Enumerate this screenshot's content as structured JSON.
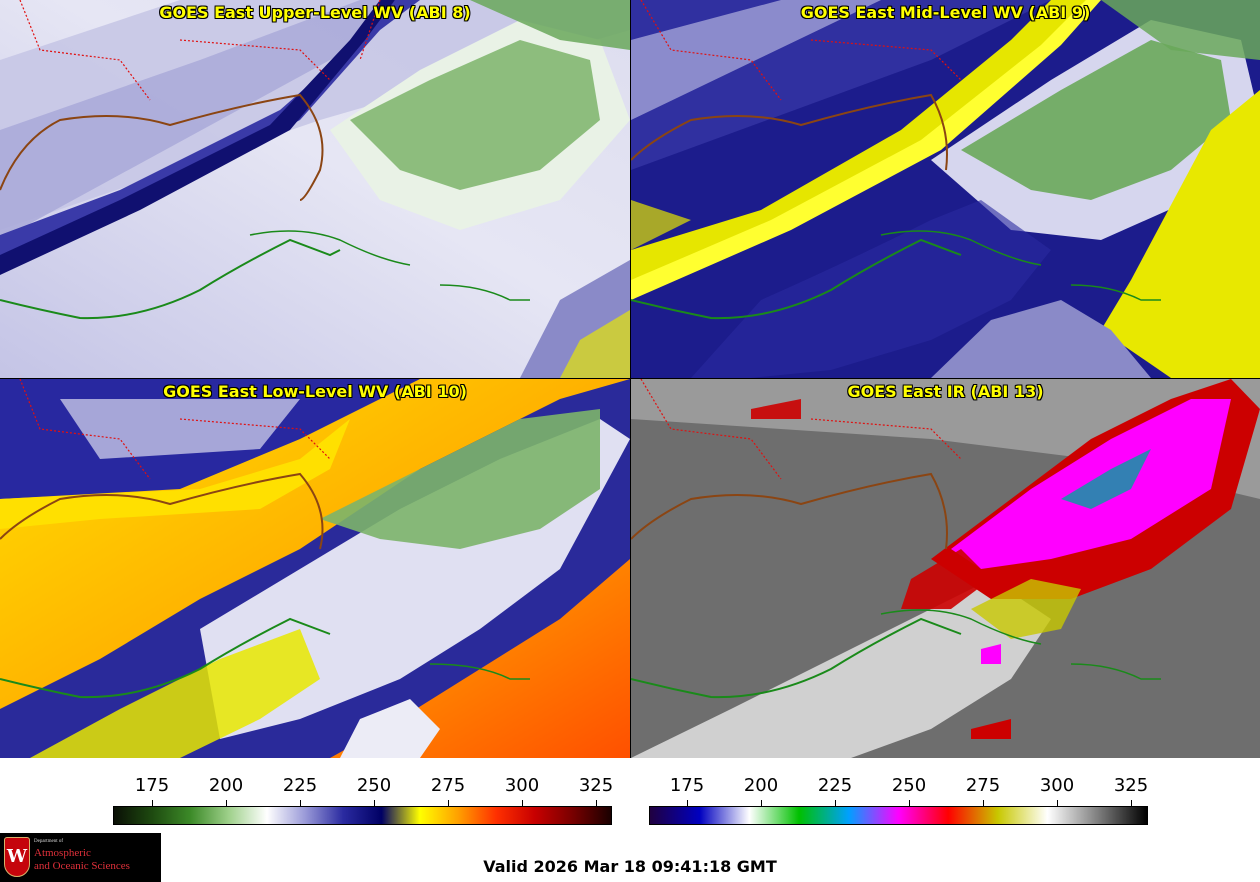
{
  "panels": [
    {
      "id": "p1",
      "title": "GOES East Upper-Level WV (ABI 8)"
    },
    {
      "id": "p2",
      "title": "GOES East Mid-Level WV (ABI 9)"
    },
    {
      "id": "p3",
      "title": "GOES East Low-Level WV (ABI 10)"
    },
    {
      "id": "p4",
      "title": "GOES East IR (ABI 13)"
    }
  ],
  "colorbar_wv": {
    "ticks": [
      "175",
      "200",
      "225",
      "250",
      "275",
      "300",
      "325"
    ],
    "colors": [
      "#0a0f05",
      "#1e4a10",
      "#3c8a28",
      "#9ed08a",
      "#ffffff",
      "#9a9ad8",
      "#2a2aa0",
      "#000064",
      "#ffff00",
      "#ffa000",
      "#ff3000",
      "#c80000",
      "#780000",
      "#1a0000"
    ]
  },
  "colorbar_ir": {
    "ticks": [
      "175",
      "200",
      "225",
      "250",
      "275",
      "300",
      "325"
    ],
    "colors": [
      "#200040",
      "#0000c0",
      "#ffffff",
      "#00c000",
      "#00a0ff",
      "#ff00ff",
      "#ff0000",
      "#c8c800",
      "#ffffff",
      "#808080",
      "#000000"
    ]
  },
  "logo": {
    "dept": "Department of",
    "line1": "Atmospheric",
    "line2": "and Oceanic Sciences",
    "crest": "W"
  },
  "valid_time": "Valid 2026 Mar 18 09:41:18 GMT"
}
